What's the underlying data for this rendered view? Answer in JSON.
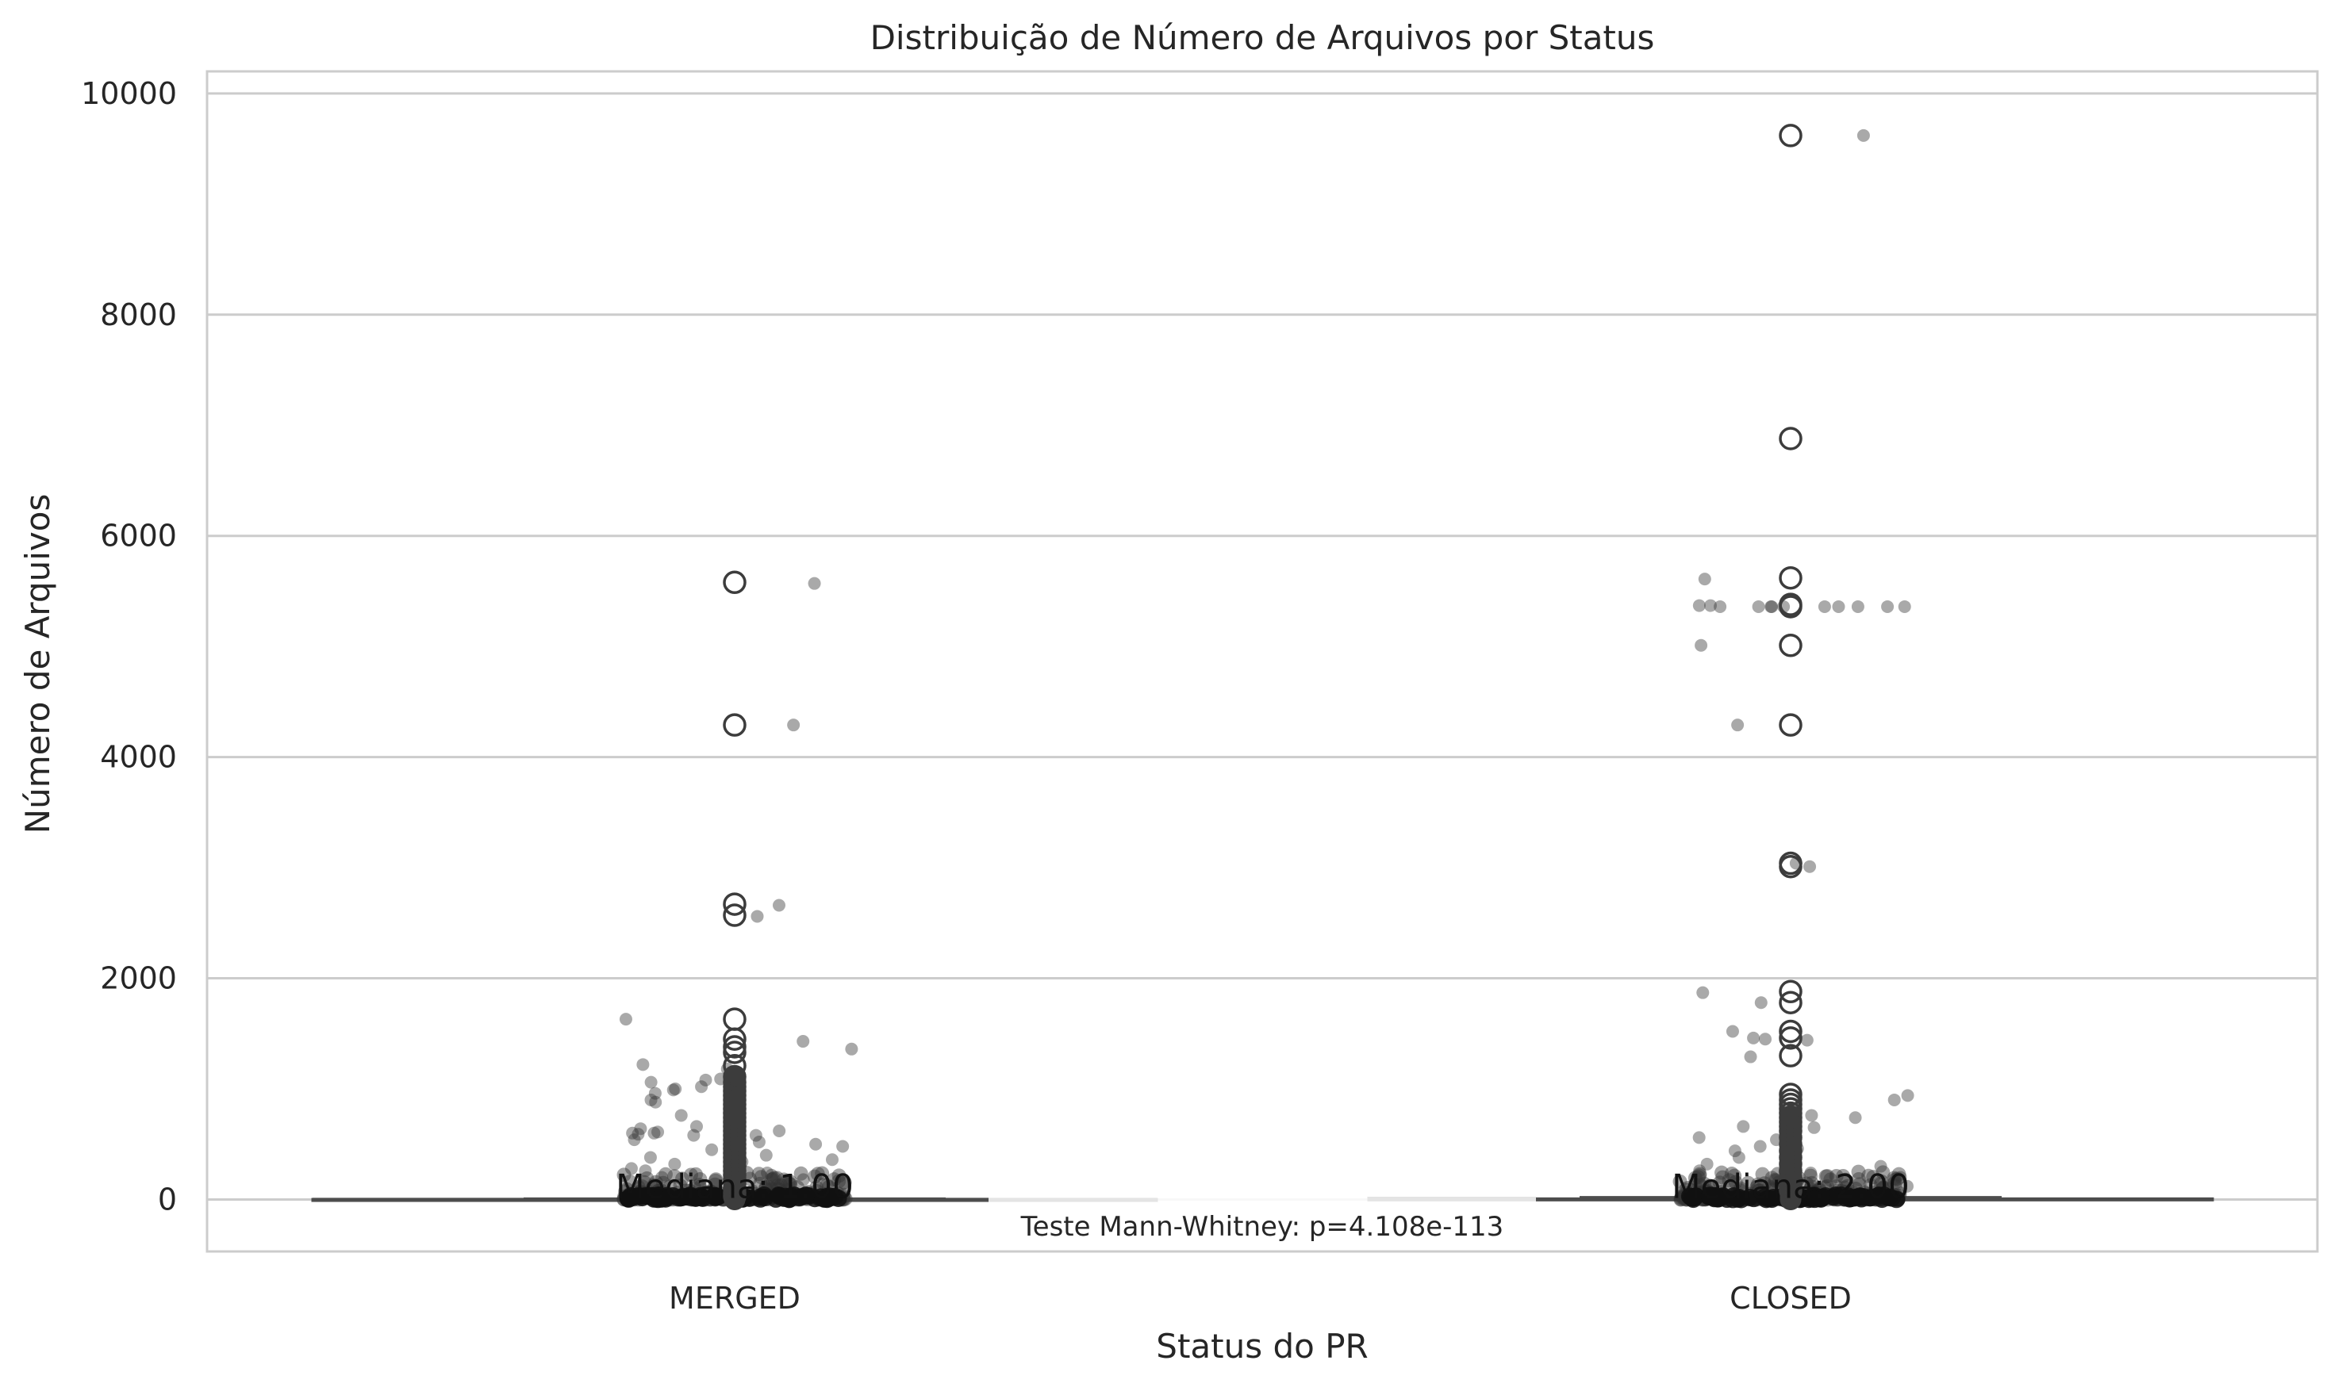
{
  "chart_data": {
    "type": "box",
    "title": "Distribuição de Número de Arquivos por Status",
    "xlabel": "Status do PR",
    "ylabel": "Número de Arquivos",
    "categories": [
      "MERGED",
      "CLOSED"
    ],
    "ylim": [
      -470,
      10200
    ],
    "yticks": [
      0,
      2000,
      4000,
      6000,
      8000,
      10000
    ],
    "ytick_labels": [
      "0",
      "2000",
      "4000",
      "6000",
      "8000",
      "10000"
    ],
    "grid": "horizontal",
    "series": [
      {
        "category": "MERGED",
        "median": 1,
        "median_label": "Mediana: 1.00",
        "box": {
          "q1": 0,
          "q3": 3,
          "whisker_low": 0,
          "whisker_high": 8
        },
        "outliers": [
          5580,
          4290,
          2670,
          2570,
          1630,
          1450,
          1380,
          1330,
          1210,
          1110,
          1060,
          1020,
          980,
          940,
          900,
          860,
          820,
          780,
          740,
          700,
          660,
          620,
          580,
          540,
          500,
          460,
          420,
          380,
          340,
          300,
          260,
          220,
          180,
          140,
          100,
          60,
          30
        ],
        "strip_points": [
          5570,
          4290,
          2660,
          2560,
          1630,
          1430,
          1360,
          1220,
          1180,
          1090,
          1080,
          1060,
          1020,
          1000,
          990,
          960,
          900,
          880,
          760,
          720,
          660,
          640,
          620,
          610,
          600,
          600,
          590,
          580,
          580,
          560,
          540,
          520,
          500,
          480,
          450,
          420,
          400,
          380,
          360,
          340,
          320,
          300,
          280,
          260,
          240,
          220,
          200,
          180,
          160,
          140,
          120,
          100,
          80,
          60,
          40,
          20,
          10,
          5,
          0
        ]
      },
      {
        "category": "CLOSED",
        "median": 2,
        "median_label": "Mediana: 2.00",
        "box": {
          "q1": 0,
          "q3": 8,
          "whisker_low": 0,
          "whisker_high": 20
        },
        "outliers": [
          9620,
          6880,
          5620,
          5380,
          5360,
          5010,
          4290,
          3040,
          3010,
          1880,
          1780,
          1520,
          1460,
          1300,
          950,
          900,
          860,
          820,
          780,
          740,
          700,
          660,
          620,
          560,
          500,
          440,
          380,
          320,
          260,
          200,
          140,
          80
        ],
        "strip_points": [
          9620,
          5610,
          5370,
          5370,
          5360,
          5360,
          5360,
          5360,
          5360,
          5360,
          5360,
          5360,
          5360,
          5360,
          5010,
          4290,
          3040,
          3010,
          1870,
          1780,
          1520,
          1460,
          1450,
          1440,
          1290,
          940,
          900,
          800,
          760,
          740,
          660,
          650,
          640,
          560,
          540,
          500,
          480,
          460,
          440,
          420,
          380,
          320,
          300,
          260,
          240,
          200,
          160,
          120,
          80,
          40,
          20,
          5,
          0
        ]
      }
    ],
    "annotation": "Teste Mann-Whitney: p=4.108e-113",
    "colors": {
      "box_line": "#4d4d4d",
      "outlier_edge": "#3c3c3c",
      "strip_point": "#333333",
      "grid": "#cccccc",
      "frame": "#cccccc",
      "text": "#262626"
    }
  }
}
